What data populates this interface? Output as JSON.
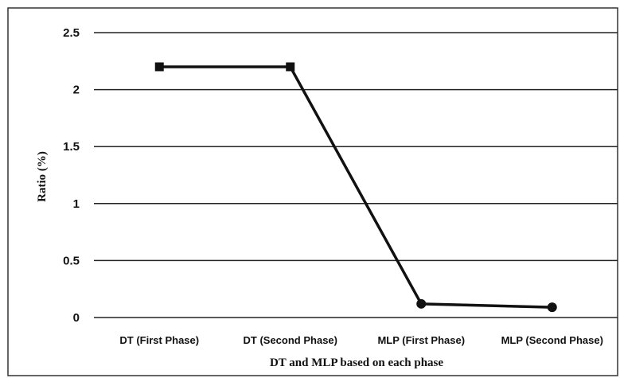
{
  "chart_data": {
    "type": "line",
    "title": "",
    "xlabel": "DT and MLP based on each phase",
    "ylabel": "Ratio (%)",
    "categories": [
      "DT (First Phase)",
      "DT (Second Phase)",
      "MLP (First Phase)",
      "MLP (Second Phase)"
    ],
    "series": [
      {
        "name": "",
        "values": [
          2.2,
          2.2,
          0.12,
          0.09
        ]
      }
    ],
    "ylim": [
      0,
      2.5
    ],
    "yticks": [
      "0",
      "0.5",
      "1",
      "1.5",
      "2",
      "2.5"
    ],
    "grid": true,
    "legend": "none",
    "colors": {
      "line": "#111111",
      "grid": "#222222",
      "frame": "#333333"
    }
  }
}
